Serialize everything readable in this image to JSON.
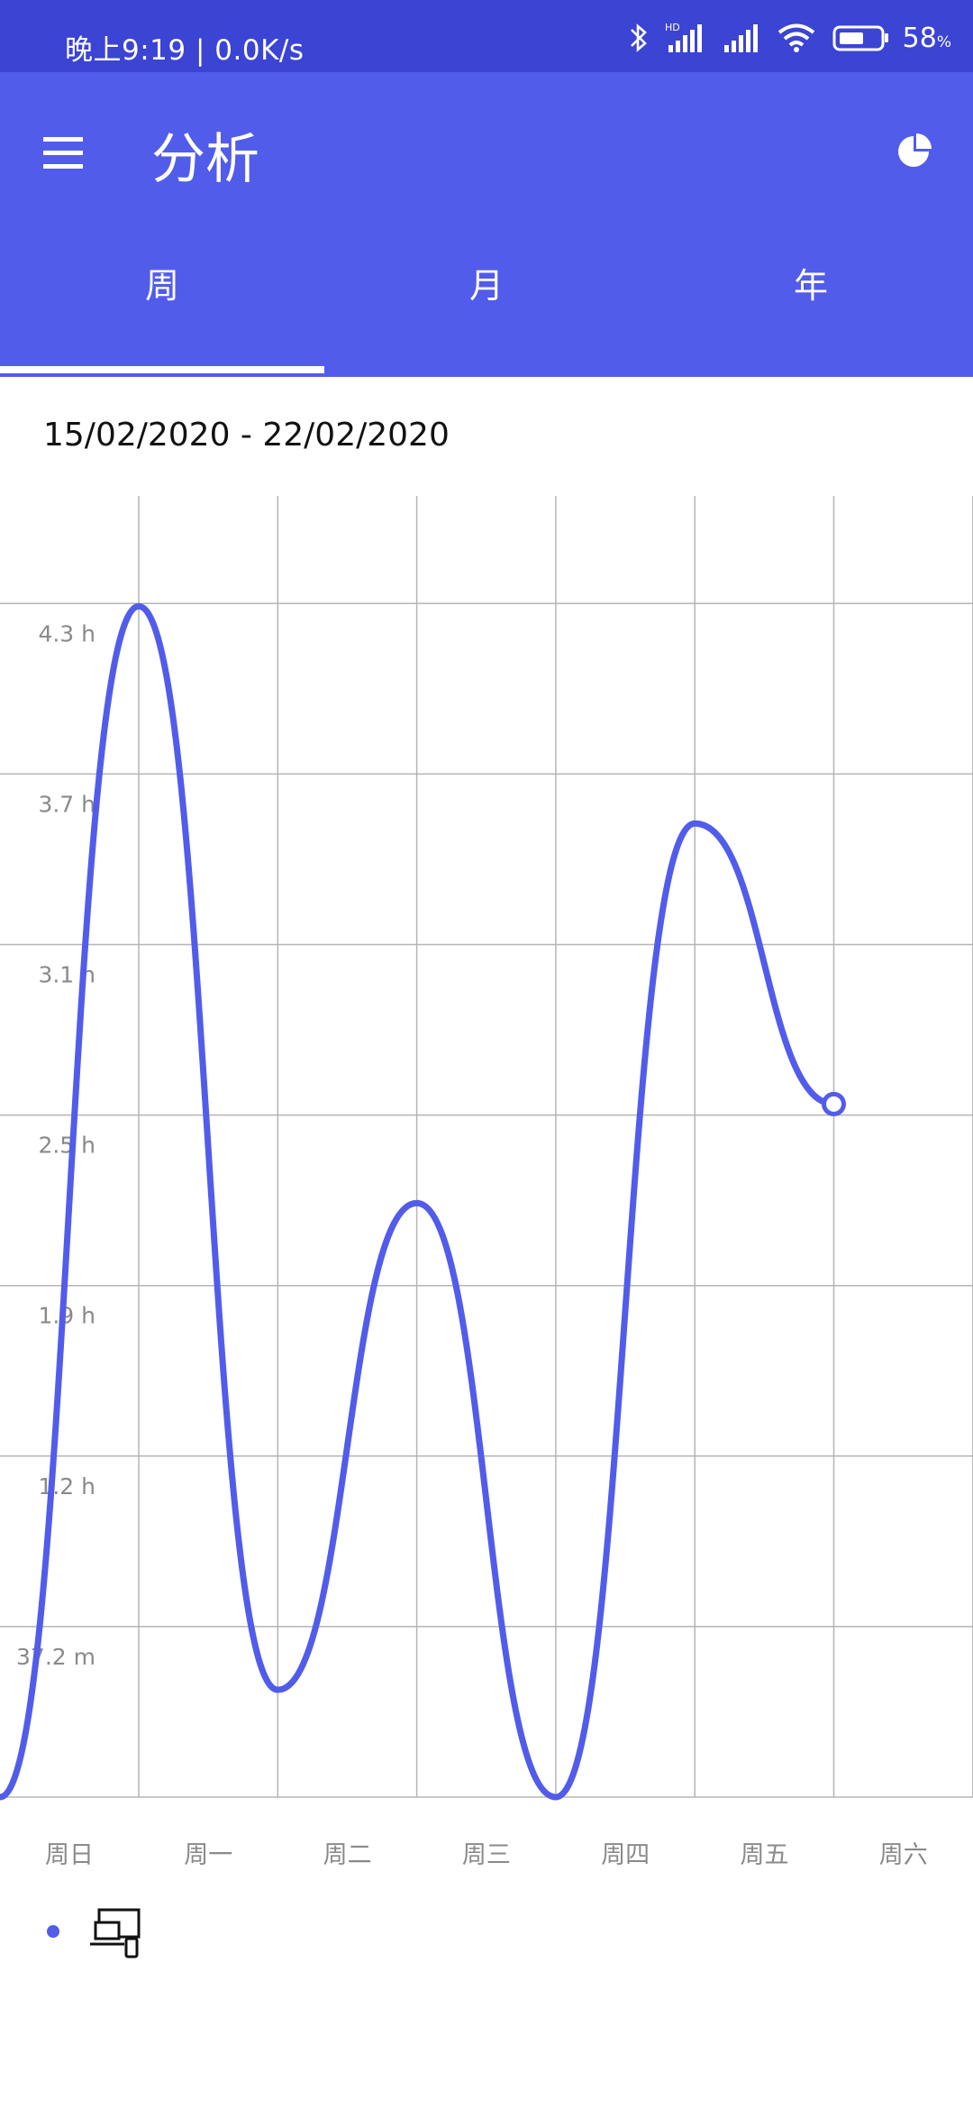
{
  "status_bar": {
    "time_text": "晚上9:19 | 0.0K/s",
    "battery_percent": "58",
    "battery_unit": "%",
    "icons": [
      "bluetooth-icon",
      "hd-signal-icon",
      "signal-icon",
      "wifi-icon",
      "battery-icon"
    ]
  },
  "app_bar": {
    "title": "分析",
    "menu_icon": "menu-icon",
    "chart_icon": "pie-chart-icon"
  },
  "tabs": [
    {
      "label": "周",
      "selected": true
    },
    {
      "label": "月",
      "selected": false
    },
    {
      "label": "年",
      "selected": false
    }
  ],
  "date_range": "15/02/2020 - 22/02/2020",
  "legend": {
    "icon": "devices-icon",
    "color": "#525cea"
  },
  "colors": {
    "status_bar": "#3b44d3",
    "app_bar": "#525cea",
    "line": "#525cea"
  },
  "chart_data": {
    "type": "line",
    "categories": [
      "周日",
      "周一",
      "周二",
      "周三",
      "周四",
      "周五",
      "周六"
    ],
    "y_tick_labels": [
      "4.3 h",
      "3.7 h",
      "3.1 h",
      "2.5 h",
      "1.9 h",
      "1.2 h",
      "37.2 m"
    ],
    "y_tick_values_hours": [
      4.34,
      3.72,
      3.1,
      2.48,
      1.86,
      1.24,
      0.62
    ],
    "ylim_hours": [
      0,
      4.6
    ],
    "x_values": [
      0,
      1,
      2,
      3,
      4,
      5
    ],
    "values_hours": [
      4.33,
      0.39,
      2.16,
      0,
      3.54,
      2.52
    ],
    "smooth": true,
    "last_point_marker": "hollow-circle",
    "grid": true
  }
}
